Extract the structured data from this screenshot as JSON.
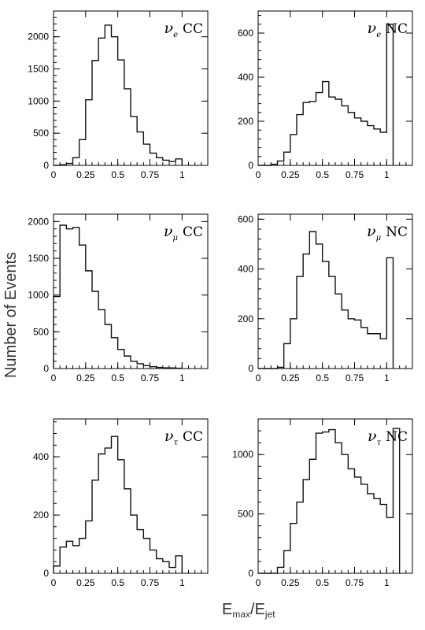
{
  "figure": {
    "ylabel": "Number of Events",
    "xlabel_main": "E",
    "xlabel_num_sub": "max",
    "xlabel_sep": "/E",
    "xlabel_den_sub": "jet"
  },
  "chart_data": [
    {
      "type": "histogram",
      "label_nu": "ν",
      "label_flavor": "e",
      "label_current": "CC",
      "xlim": [
        0,
        1.2
      ],
      "ylim": [
        0,
        2400
      ],
      "xticks": [
        0,
        0.25,
        0.5,
        0.75,
        1
      ],
      "xtick_labels": [
        "0",
        "0.25",
        "0.5",
        "0.75",
        "1"
      ],
      "yticks": [
        0,
        500,
        1000,
        1500,
        2000
      ],
      "ytick_labels": [
        "0",
        "500",
        "1000",
        "1500",
        "2000"
      ],
      "bin_width": 0.05,
      "bins_start": 0,
      "values": [
        0,
        10,
        30,
        120,
        400,
        1020,
        1630,
        1980,
        2180,
        2000,
        1640,
        1190,
        760,
        520,
        330,
        190,
        120,
        80,
        60,
        100
      ]
    },
    {
      "type": "histogram",
      "label_nu": "ν",
      "label_flavor": "e",
      "label_current": "NC",
      "xlim": [
        0,
        1.2
      ],
      "ylim": [
        0,
        700
      ],
      "xticks": [
        0,
        0.25,
        0.5,
        0.75,
        1
      ],
      "xtick_labels": [
        "0",
        "0.25",
        "0.5",
        "0.75",
        "1"
      ],
      "yticks": [
        0,
        200,
        400,
        600
      ],
      "ytick_labels": [
        "0",
        "200",
        "400",
        "600"
      ],
      "bin_width": 0.05,
      "bins_start": 0,
      "values": [
        0,
        0,
        5,
        20,
        60,
        140,
        230,
        285,
        290,
        330,
        380,
        310,
        300,
        270,
        240,
        215,
        200,
        180,
        165,
        150,
        640
      ]
    },
    {
      "type": "histogram",
      "label_nu": "ν",
      "label_flavor": "μ",
      "label_current": "CC",
      "xlim": [
        0,
        1.2
      ],
      "ylim": [
        0,
        2100
      ],
      "xticks": [
        0,
        0.25,
        0.5,
        0.75,
        1
      ],
      "xtick_labels": [
        "0",
        "0.25",
        "0.5",
        "0.75",
        "1"
      ],
      "yticks": [
        0,
        500,
        1000,
        1500,
        2000
      ],
      "ytick_labels": [
        "0",
        "500",
        "1000",
        "1500",
        "2000"
      ],
      "bin_width": 0.05,
      "bins_start": 0,
      "values": [
        980,
        1950,
        1900,
        1920,
        1680,
        1330,
        1050,
        800,
        600,
        420,
        260,
        170,
        100,
        65,
        40,
        25,
        15,
        10,
        8,
        5
      ]
    },
    {
      "type": "histogram",
      "label_nu": "ν",
      "label_flavor": "μ",
      "label_current": "NC",
      "xlim": [
        0,
        1.2
      ],
      "ylim": [
        0,
        620
      ],
      "xticks": [
        0,
        0.25,
        0.5,
        0.75,
        1
      ],
      "xtick_labels": [
        "0",
        "0.25",
        "0.5",
        "0.75",
        "1"
      ],
      "yticks": [
        0,
        200,
        400,
        600
      ],
      "ytick_labels": [
        "0",
        "200",
        "400",
        "600"
      ],
      "bin_width": 0.05,
      "bins_start": 0,
      "values": [
        0,
        0,
        0,
        5,
        100,
        200,
        370,
        460,
        550,
        500,
        430,
        370,
        300,
        235,
        200,
        195,
        165,
        140,
        140,
        120,
        445
      ]
    },
    {
      "type": "histogram",
      "label_nu": "ν",
      "label_flavor": "τ",
      "label_current": "CC",
      "xlim": [
        0,
        1.2
      ],
      "ylim": [
        0,
        530
      ],
      "xticks": [
        0,
        0.25,
        0.5,
        0.75,
        1
      ],
      "xtick_labels": [
        "0",
        "0.25",
        "0.5",
        "0.75",
        "1"
      ],
      "yticks": [
        0,
        200,
        400
      ],
      "ytick_labels": [
        "0",
        "200",
        "400"
      ],
      "bin_width": 0.05,
      "bins_start": 0,
      "values": [
        25,
        90,
        110,
        95,
        120,
        180,
        320,
        410,
        430,
        470,
        390,
        290,
        200,
        150,
        120,
        80,
        50,
        40,
        20,
        60
      ]
    },
    {
      "type": "histogram",
      "label_nu": "ν",
      "label_flavor": "τ",
      "label_current": "NC",
      "xlim": [
        0,
        1.2
      ],
      "ylim": [
        0,
        1300
      ],
      "xticks": [
        0,
        0.25,
        0.5,
        0.75,
        1
      ],
      "xtick_labels": [
        "0",
        "0.25",
        "0.5",
        "0.75",
        "1"
      ],
      "yticks": [
        0,
        500,
        1000
      ],
      "ytick_labels": [
        "0",
        "500",
        "1000"
      ],
      "bin_width": 0.05,
      "bins_start": 0,
      "values": [
        0,
        0,
        0,
        50,
        190,
        420,
        600,
        790,
        960,
        1180,
        1190,
        1210,
        1100,
        1000,
        880,
        810,
        750,
        670,
        630,
        580,
        470,
        1220
      ]
    }
  ]
}
